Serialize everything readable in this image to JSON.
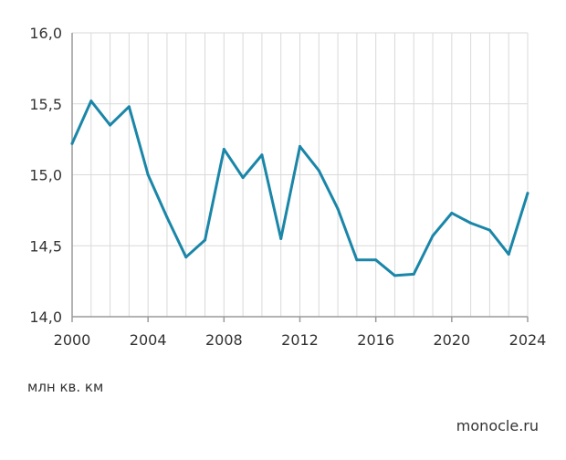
{
  "chart_data": {
    "type": "line",
    "x": [
      2000,
      2001,
      2002,
      2003,
      2004,
      2005,
      2006,
      2007,
      2008,
      2009,
      2010,
      2011,
      2012,
      2013,
      2014,
      2015,
      2016,
      2017,
      2018,
      2019,
      2020,
      2021,
      2022,
      2023,
      2024
    ],
    "series": [
      {
        "values": [
          15.22,
          15.52,
          15.35,
          15.48,
          15.0,
          14.7,
          14.42,
          14.54,
          15.18,
          14.98,
          15.14,
          14.55,
          15.2,
          15.03,
          14.76,
          14.4,
          14.4,
          14.29,
          14.3,
          14.57,
          14.73,
          14.66,
          14.61,
          14.44,
          14.87
        ],
        "color": "#1a86a8"
      }
    ],
    "xlim": [
      2000,
      2024
    ],
    "ylim": [
      14.0,
      16.0
    ],
    "x_ticks": [
      2000,
      2004,
      2008,
      2012,
      2016,
      2020,
      2024
    ],
    "x_tick_labels": [
      "2000",
      "2004",
      "2008",
      "2012",
      "2016",
      "2020",
      "2024"
    ],
    "y_ticks": [
      14.0,
      14.5,
      15.0,
      15.5,
      16.0
    ],
    "y_tick_labels": [
      "14,0",
      "14,5",
      "15,0",
      "15,5",
      "16,0"
    ],
    "grid": true,
    "unit_label": "млн кв. км",
    "source": "monocle.ru"
  }
}
